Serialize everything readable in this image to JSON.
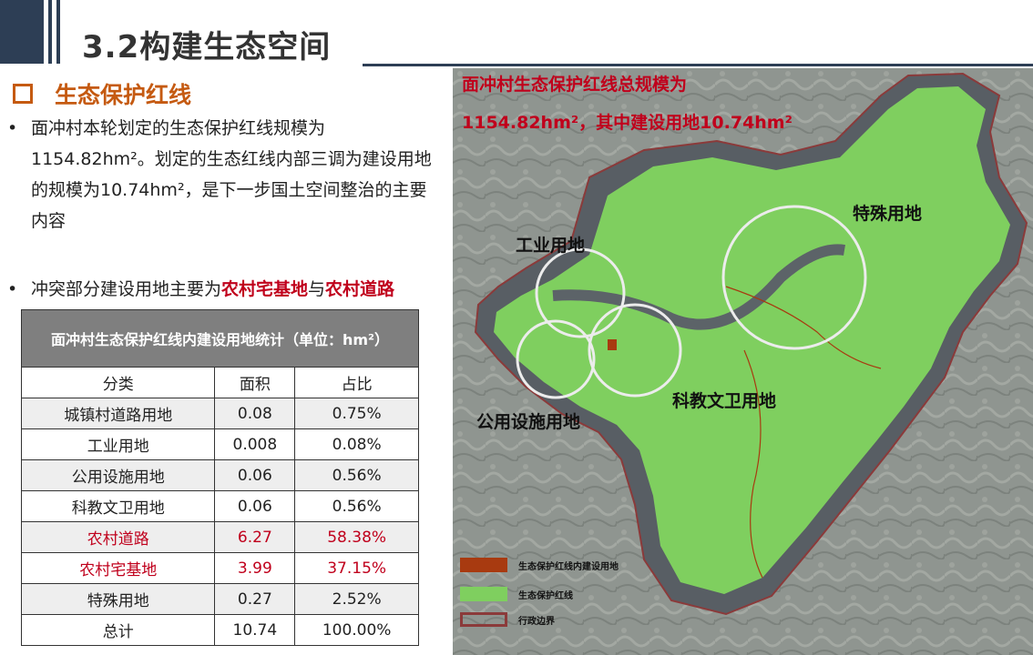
{
  "header": {
    "title": "3.2构建生态空间"
  },
  "section": {
    "title": "生态保护红线"
  },
  "bullets": {
    "b1": "面冲村本轮划定的生态保护红线规模为1154.82hm²。划定的生态红线内部三调为建设用地的规模为10.74hm²，是下一步国土空间整治的主要内容",
    "b2_prefix": "冲突部分建设用地主要为",
    "b2_hl1": "农村宅基地",
    "b2_mid": "与",
    "b2_hl2": "农村道路"
  },
  "table": {
    "caption": "面冲村生态保护红线内建设用地统计（单位：hm²）",
    "headers": [
      "分类",
      "面积",
      "占比"
    ],
    "rows": [
      {
        "category": "城镇村道路用地",
        "area": "0.08",
        "ratio": "0.75%"
      },
      {
        "category": "工业用地",
        "area": "0.008",
        "ratio": "0.08%"
      },
      {
        "category": "公用设施用地",
        "area": "0.06",
        "ratio": "0.56%"
      },
      {
        "category": "科教文卫用地",
        "area": "0.06",
        "ratio": "0.56%"
      },
      {
        "category": "农村道路",
        "area": "6.27",
        "ratio": "58.38%"
      },
      {
        "category": "农村宅基地",
        "area": "3.99",
        "ratio": "37.15%"
      },
      {
        "category": "特殊用地",
        "area": "0.27",
        "ratio": "2.52%"
      },
      {
        "category": "总计",
        "area": "10.74",
        "ratio": "100.00%"
      }
    ]
  },
  "map": {
    "title_line1": "面冲村生态保护红线总规模为",
    "title_line2": "1154.82hm²，其中建设用地10.74hm²",
    "zones": {
      "special": "特殊用地",
      "industrial": "工业用地",
      "science": "科教文卫用地",
      "utility": "公用设施用地"
    },
    "legend": [
      {
        "label": "生态保护红线内建设用地",
        "color": "#a83a10"
      },
      {
        "label": "生态保护红线",
        "color": "#7fcf5f"
      },
      {
        "label": "行政边界",
        "color": "#8b3a3a"
      }
    ]
  },
  "colors": {
    "accent": "#c55a11",
    "highlight": "#c0001c",
    "navy": "#2d3e55"
  }
}
